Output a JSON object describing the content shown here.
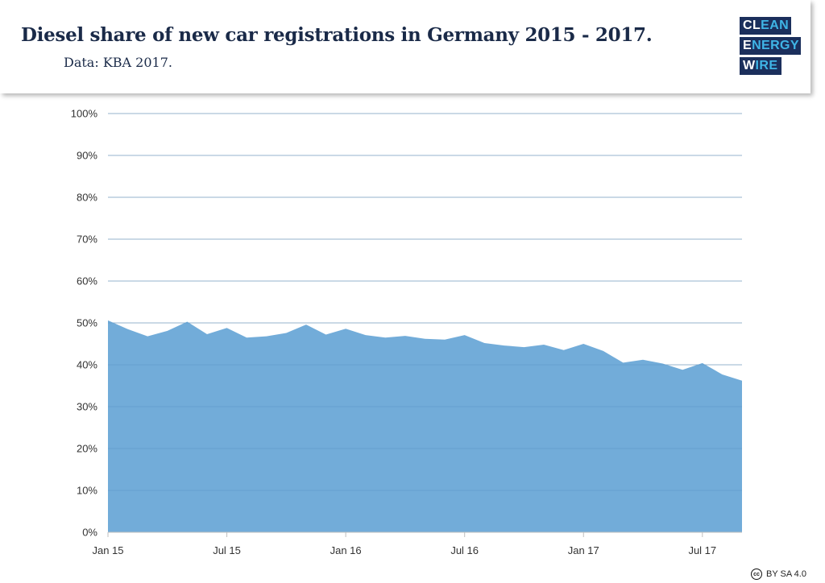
{
  "header": {
    "title": "Diesel share of new car registrations in Germany 2015 - 2017.",
    "subtitle": "Data: KBA 2017."
  },
  "logo": {
    "line1": [
      "CL",
      "EAN"
    ],
    "line2": [
      "E",
      "NERGY"
    ],
    "line3": [
      "W",
      "IRE"
    ],
    "colors": {
      "box": "#1b2f5c",
      "text": "#ffffff",
      "highlight": "#3fb5e6"
    }
  },
  "license": {
    "icon": "cc-icon",
    "icon_text": "cc",
    "text": "BY SA 4.0"
  },
  "chart_data": {
    "type": "area",
    "title": "Diesel share of new car registrations in Germany 2015 - 2017.",
    "xlabel": "",
    "ylabel": "",
    "ylim": [
      0,
      100
    ],
    "yticks": [
      0,
      10,
      20,
      30,
      40,
      50,
      60,
      70,
      80,
      90,
      100
    ],
    "ytick_labels": [
      "0%",
      "10%",
      "20%",
      "30%",
      "40%",
      "50%",
      "60%",
      "70%",
      "80%",
      "90%",
      "100%"
    ],
    "grid": true,
    "xticks": [
      {
        "index": 0,
        "label": "Jan 15"
      },
      {
        "index": 6,
        "label": "Jul 15"
      },
      {
        "index": 12,
        "label": "Jan 16"
      },
      {
        "index": 18,
        "label": "Jul 16"
      },
      {
        "index": 24,
        "label": "Jan 17"
      },
      {
        "index": 30,
        "label": "Jul 17"
      }
    ],
    "categories": [
      "Jan 15",
      "Feb 15",
      "Mar 15",
      "Apr 15",
      "May 15",
      "Jun 15",
      "Jul 15",
      "Aug 15",
      "Sep 15",
      "Oct 15",
      "Nov 15",
      "Dec 15",
      "Jan 16",
      "Feb 16",
      "Mar 16",
      "Apr 16",
      "May 16",
      "Jun 16",
      "Jul 16",
      "Aug 16",
      "Sep 16",
      "Oct 16",
      "Nov 16",
      "Dec 16",
      "Jan 17",
      "Feb 17",
      "Mar 17",
      "Apr 17",
      "May 17",
      "Jun 17",
      "Jul 17",
      "Aug 17",
      "Sep 17"
    ],
    "series": [
      {
        "name": "Diesel share",
        "color": "#72acd9",
        "values": [
          50.6,
          48.5,
          46.8,
          48.1,
          50.3,
          47.3,
          48.8,
          46.5,
          46.8,
          47.6,
          49.6,
          47.2,
          48.6,
          47.1,
          46.5,
          46.9,
          46.2,
          46.0,
          47.1,
          45.2,
          44.6,
          44.2,
          44.8,
          43.5,
          45.0,
          43.3,
          40.5,
          41.2,
          40.3,
          38.8,
          40.4,
          37.7,
          36.2
        ]
      }
    ]
  }
}
